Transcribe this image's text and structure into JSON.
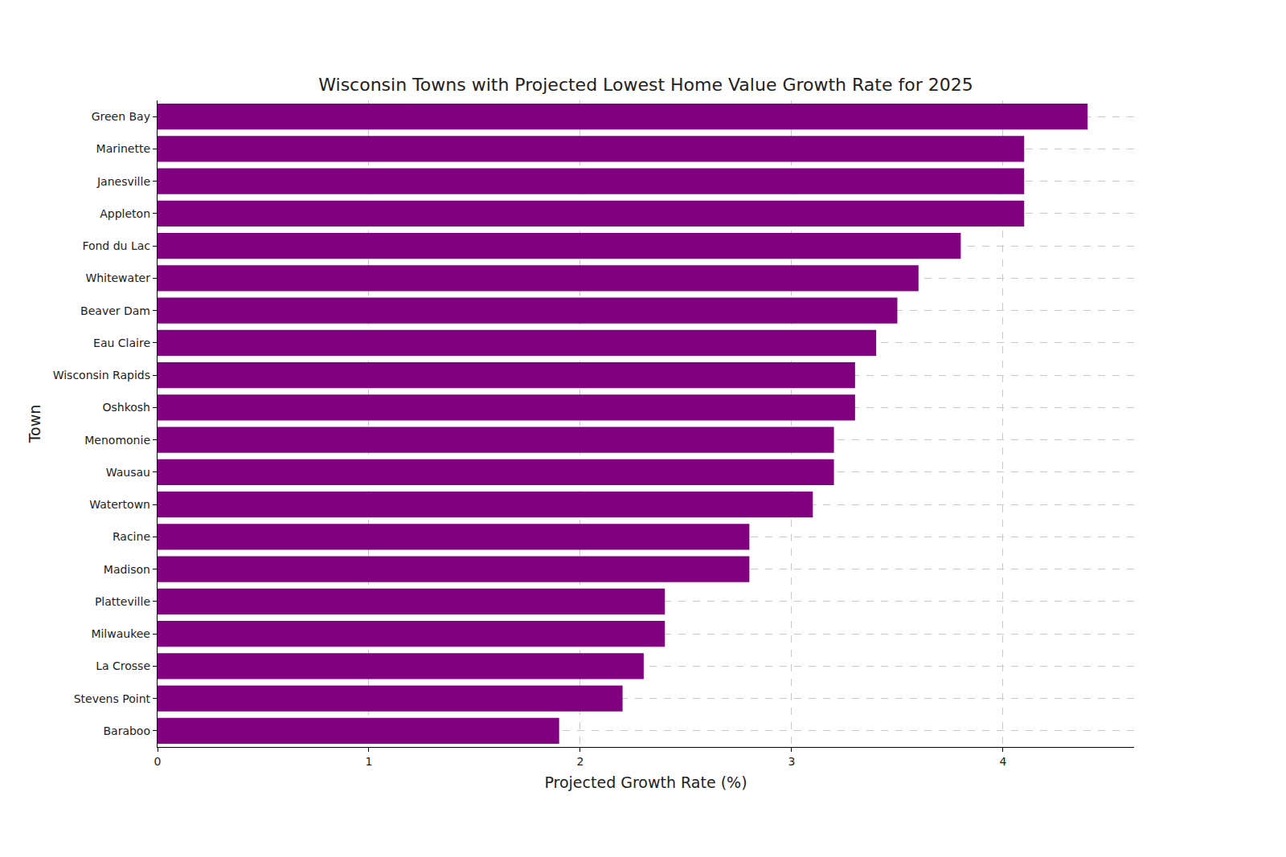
{
  "chart_data": {
    "type": "bar",
    "orientation": "horizontal",
    "title": "Wisconsin Towns with Projected Lowest Home Value Growth Rate for 2025",
    "x_label": "Projected Growth Rate (%)",
    "y_label": "Town",
    "categories": [
      "Green Bay",
      "Marinette",
      "Janesville",
      "Appleton",
      "Fond du Lac",
      "Whitewater",
      "Beaver Dam",
      "Eau Claire",
      "Wisconsin Rapids",
      "Oshkosh",
      "Menomonie",
      "Wausau",
      "Watertown",
      "Racine",
      "Madison",
      "Platteville",
      "Milwaukee",
      "La Crosse",
      "Stevens Point",
      "Baraboo"
    ],
    "values": [
      4.4,
      4.1,
      4.1,
      4.1,
      3.8,
      3.6,
      3.5,
      3.4,
      3.3,
      3.3,
      3.2,
      3.2,
      3.1,
      2.8,
      2.8,
      2.4,
      2.4,
      2.3,
      2.2,
      1.9
    ],
    "color": "#800080",
    "xlim": [
      0,
      4.62
    ],
    "xticks": [
      0,
      1,
      2,
      3,
      4
    ],
    "grid": true
  }
}
